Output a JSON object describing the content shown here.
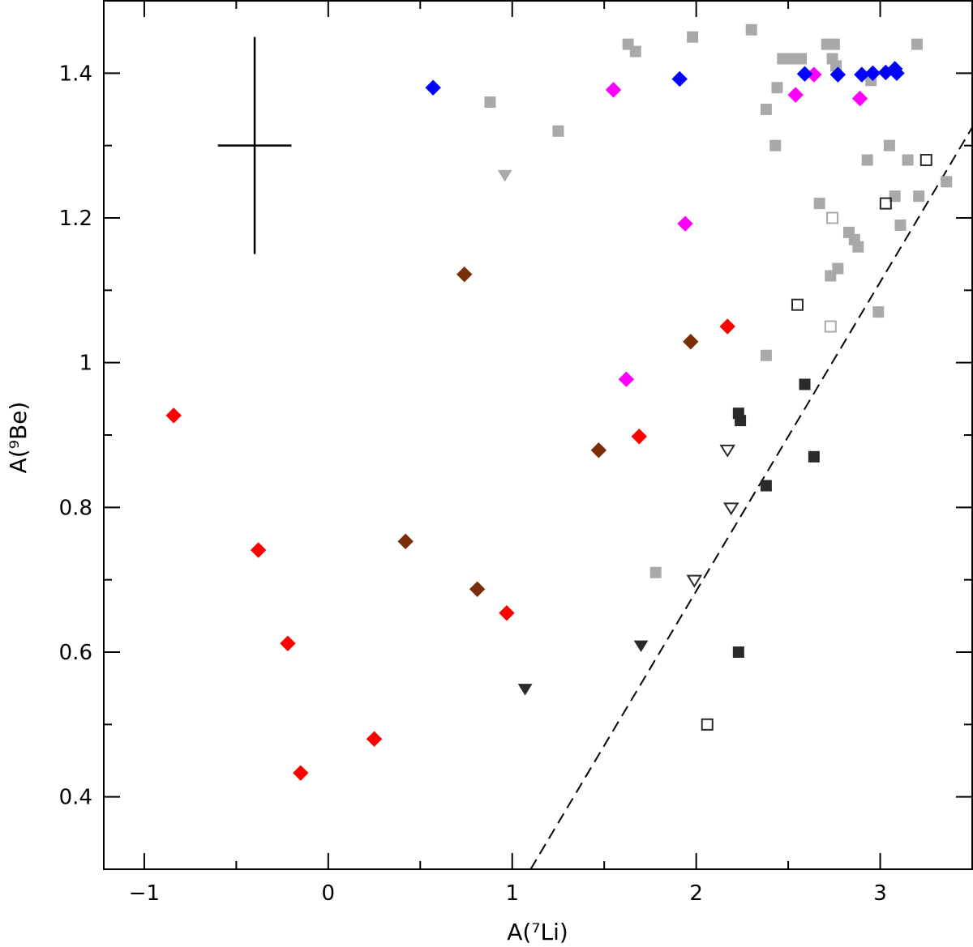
{
  "chart_data": {
    "type": "scatter",
    "title": "",
    "xlabel": "A(⁷Li)",
    "ylabel": "A(⁹Be)",
    "xlim": [
      -1.22,
      3.5
    ],
    "ylim": [
      0.3,
      1.5
    ],
    "x_ticks": [
      -1,
      0,
      1,
      2,
      3
    ],
    "x_tick_labels": [
      "−1",
      "0",
      "1",
      "2",
      "3"
    ],
    "y_ticks": [
      0.4,
      0.6,
      0.8,
      1.0,
      1.2,
      1.4
    ],
    "y_tick_labels": [
      "0.4",
      "0.6",
      "0.8",
      "1",
      "1.2",
      "1.4"
    ],
    "error_bar": {
      "x": -0.4,
      "y": 1.3,
      "x_err": 0.2,
      "y_err": 0.15
    },
    "reference_line": {
      "style": "dashed",
      "points": [
        [
          1.1,
          0.3
        ],
        [
          3.5,
          1.325
        ]
      ]
    },
    "series": [
      {
        "name": "red-diamonds",
        "marker": "diamond",
        "color": "#ff0000",
        "filled": true,
        "points": [
          [
            -0.84,
            0.927
          ],
          [
            -0.38,
            0.741
          ],
          [
            -0.22,
            0.612
          ],
          [
            -0.15,
            0.433
          ],
          [
            0.25,
            0.48
          ],
          [
            0.97,
            0.654
          ],
          [
            1.69,
            0.898
          ],
          [
            2.17,
            1.05
          ]
        ]
      },
      {
        "name": "brown-diamonds",
        "marker": "diamond",
        "color": "#7a2e08",
        "filled": true,
        "points": [
          [
            0.42,
            0.753
          ],
          [
            0.74,
            1.122
          ],
          [
            0.81,
            0.687
          ],
          [
            1.47,
            0.879
          ],
          [
            1.97,
            1.029
          ]
        ]
      },
      {
        "name": "magenta-diamonds",
        "marker": "diamond",
        "color": "#ff00ff",
        "filled": true,
        "points": [
          [
            1.55,
            1.377
          ],
          [
            1.62,
            0.977
          ],
          [
            1.94,
            1.192
          ],
          [
            2.54,
            1.37
          ],
          [
            2.64,
            1.398
          ],
          [
            2.89,
            1.365
          ]
        ]
      },
      {
        "name": "blue-diamonds",
        "marker": "diamond",
        "color": "#0000ff",
        "filled": true,
        "points": [
          [
            0.57,
            1.38
          ],
          [
            1.91,
            1.392
          ],
          [
            2.59,
            1.399
          ],
          [
            2.77,
            1.398
          ],
          [
            2.9,
            1.398
          ],
          [
            2.96,
            1.4
          ],
          [
            3.03,
            1.401
          ],
          [
            3.08,
            1.406
          ],
          [
            3.09,
            1.4
          ]
        ]
      },
      {
        "name": "gray-squares",
        "marker": "square",
        "color": "#a9a9a9",
        "filled": true,
        "points": [
          [
            0.88,
            1.36
          ],
          [
            1.25,
            1.32
          ],
          [
            1.63,
            1.44
          ],
          [
            1.67,
            1.43
          ],
          [
            1.98,
            1.45
          ],
          [
            2.3,
            1.46
          ],
          [
            2.38,
            1.35
          ],
          [
            2.43,
            1.3
          ],
          [
            2.44,
            1.38
          ],
          [
            2.47,
            1.42
          ],
          [
            2.52,
            1.42
          ],
          [
            2.57,
            1.42
          ],
          [
            2.67,
            1.22
          ],
          [
            2.71,
            1.44
          ],
          [
            2.75,
            1.44
          ],
          [
            2.74,
            1.42
          ],
          [
            2.76,
            1.41
          ],
          [
            2.73,
            1.12
          ],
          [
            2.77,
            1.13
          ],
          [
            2.83,
            1.18
          ],
          [
            2.86,
            1.17
          ],
          [
            2.88,
            1.16
          ],
          [
            2.93,
            1.28
          ],
          [
            2.95,
            1.39
          ],
          [
            2.99,
            1.07
          ],
          [
            3.05,
            1.3
          ],
          [
            3.08,
            1.23
          ],
          [
            3.11,
            1.19
          ],
          [
            3.15,
            1.28
          ],
          [
            3.2,
            1.44
          ],
          [
            3.21,
            1.23
          ],
          [
            3.36,
            1.25
          ],
          [
            2.38,
            1.01
          ],
          [
            1.78,
            0.71
          ]
        ]
      },
      {
        "name": "gray-triangles",
        "marker": "triangle-down",
        "color": "#a9a9a9",
        "filled": true,
        "points": [
          [
            0.96,
            1.26
          ]
        ]
      },
      {
        "name": "gray-open-squares",
        "marker": "square",
        "color": "#a9a9a9",
        "filled": false,
        "points": [
          [
            2.74,
            1.2
          ],
          [
            2.73,
            1.05
          ]
        ]
      },
      {
        "name": "black-squares",
        "marker": "square",
        "color": "#2a2a2a",
        "filled": true,
        "points": [
          [
            2.23,
            0.93
          ],
          [
            2.24,
            0.92
          ],
          [
            2.38,
            0.83
          ],
          [
            2.59,
            0.97
          ],
          [
            2.64,
            0.87
          ],
          [
            2.23,
            0.6
          ]
        ]
      },
      {
        "name": "black-triangles",
        "marker": "triangle-down",
        "color": "#2a2a2a",
        "filled": true,
        "points": [
          [
            1.07,
            0.55
          ],
          [
            1.7,
            0.61
          ]
        ]
      },
      {
        "name": "open-squares",
        "marker": "square",
        "color": "#2a2a2a",
        "filled": false,
        "points": [
          [
            2.55,
            1.08
          ],
          [
            3.03,
            1.22
          ],
          [
            3.25,
            1.28
          ],
          [
            2.06,
            0.5
          ]
        ]
      },
      {
        "name": "open-triangles",
        "marker": "triangle-down",
        "color": "#2a2a2a",
        "filled": false,
        "points": [
          [
            1.99,
            0.7
          ],
          [
            2.19,
            0.8
          ],
          [
            2.17,
            0.88
          ]
        ]
      }
    ]
  }
}
